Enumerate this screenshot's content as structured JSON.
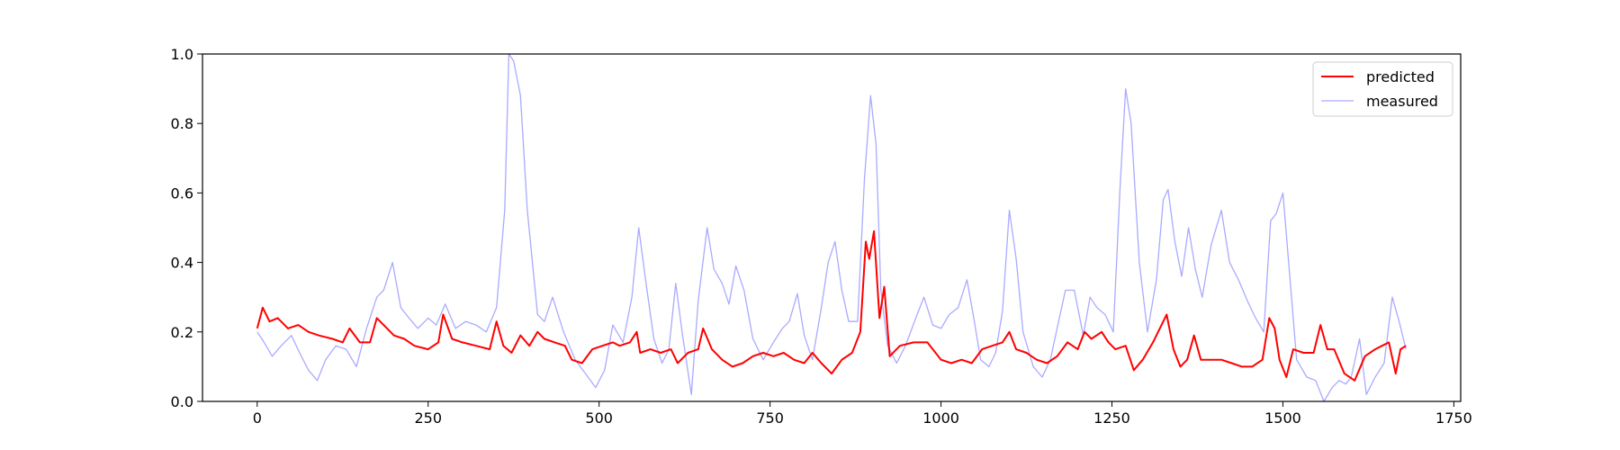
{
  "chart_data": {
    "type": "line",
    "title": "",
    "xlabel": "",
    "ylabel": "",
    "xlim": [
      -80,
      1760
    ],
    "ylim": [
      0,
      1.0
    ],
    "xticks": [
      0,
      250,
      500,
      750,
      1000,
      1250,
      1500,
      1750
    ],
    "yticks": [
      0.0,
      0.2,
      0.4,
      0.6,
      0.8,
      1.0
    ],
    "x_tick_labels": [
      "0",
      "250",
      "500",
      "750",
      "1000",
      "1250",
      "1500",
      "1750"
    ],
    "y_tick_labels": [
      "0.0",
      "0.2",
      "0.4",
      "0.6",
      "0.8",
      "1.0"
    ],
    "grid": false,
    "legend": {
      "position": "top-right"
    },
    "series": [
      {
        "name": "predicted",
        "color": "#ff0000",
        "points": [
          [
            0,
            0.21
          ],
          [
            8,
            0.27
          ],
          [
            18,
            0.23
          ],
          [
            30,
            0.24
          ],
          [
            45,
            0.21
          ],
          [
            60,
            0.22
          ],
          [
            75,
            0.2
          ],
          [
            90,
            0.19
          ],
          [
            110,
            0.18
          ],
          [
            125,
            0.17
          ],
          [
            135,
            0.21
          ],
          [
            150,
            0.17
          ],
          [
            165,
            0.17
          ],
          [
            175,
            0.24
          ],
          [
            190,
            0.21
          ],
          [
            200,
            0.19
          ],
          [
            215,
            0.18
          ],
          [
            230,
            0.16
          ],
          [
            250,
            0.15
          ],
          [
            265,
            0.17
          ],
          [
            272,
            0.25
          ],
          [
            285,
            0.18
          ],
          [
            300,
            0.17
          ],
          [
            320,
            0.16
          ],
          [
            340,
            0.15
          ],
          [
            350,
            0.23
          ],
          [
            360,
            0.16
          ],
          [
            372,
            0.14
          ],
          [
            385,
            0.19
          ],
          [
            398,
            0.16
          ],
          [
            410,
            0.2
          ],
          [
            420,
            0.18
          ],
          [
            435,
            0.17
          ],
          [
            450,
            0.16
          ],
          [
            460,
            0.12
          ],
          [
            475,
            0.11
          ],
          [
            490,
            0.15
          ],
          [
            505,
            0.16
          ],
          [
            520,
            0.17
          ],
          [
            530,
            0.16
          ],
          [
            545,
            0.17
          ],
          [
            555,
            0.2
          ],
          [
            560,
            0.14
          ],
          [
            575,
            0.15
          ],
          [
            590,
            0.14
          ],
          [
            605,
            0.15
          ],
          [
            615,
            0.11
          ],
          [
            630,
            0.14
          ],
          [
            645,
            0.15
          ],
          [
            652,
            0.21
          ],
          [
            665,
            0.15
          ],
          [
            680,
            0.12
          ],
          [
            695,
            0.1
          ],
          [
            710,
            0.11
          ],
          [
            725,
            0.13
          ],
          [
            740,
            0.14
          ],
          [
            755,
            0.13
          ],
          [
            770,
            0.14
          ],
          [
            785,
            0.12
          ],
          [
            800,
            0.11
          ],
          [
            812,
            0.14
          ],
          [
            825,
            0.11
          ],
          [
            840,
            0.08
          ],
          [
            855,
            0.12
          ],
          [
            870,
            0.14
          ],
          [
            882,
            0.2
          ],
          [
            890,
            0.46
          ],
          [
            895,
            0.41
          ],
          [
            902,
            0.49
          ],
          [
            910,
            0.24
          ],
          [
            917,
            0.33
          ],
          [
            925,
            0.13
          ],
          [
            940,
            0.16
          ],
          [
            960,
            0.17
          ],
          [
            980,
            0.17
          ],
          [
            1000,
            0.12
          ],
          [
            1015,
            0.11
          ],
          [
            1030,
            0.12
          ],
          [
            1045,
            0.11
          ],
          [
            1060,
            0.15
          ],
          [
            1075,
            0.16
          ],
          [
            1090,
            0.17
          ],
          [
            1100,
            0.2
          ],
          [
            1110,
            0.15
          ],
          [
            1125,
            0.14
          ],
          [
            1140,
            0.12
          ],
          [
            1155,
            0.11
          ],
          [
            1170,
            0.13
          ],
          [
            1185,
            0.17
          ],
          [
            1200,
            0.15
          ],
          [
            1210,
            0.2
          ],
          [
            1220,
            0.18
          ],
          [
            1235,
            0.2
          ],
          [
            1245,
            0.17
          ],
          [
            1255,
            0.15
          ],
          [
            1270,
            0.16
          ],
          [
            1282,
            0.09
          ],
          [
            1295,
            0.12
          ],
          [
            1310,
            0.17
          ],
          [
            1320,
            0.21
          ],
          [
            1330,
            0.25
          ],
          [
            1340,
            0.15
          ],
          [
            1350,
            0.1
          ],
          [
            1360,
            0.12
          ],
          [
            1370,
            0.19
          ],
          [
            1380,
            0.12
          ],
          [
            1395,
            0.12
          ],
          [
            1410,
            0.12
          ],
          [
            1425,
            0.11
          ],
          [
            1440,
            0.1
          ],
          [
            1455,
            0.1
          ],
          [
            1470,
            0.12
          ],
          [
            1480,
            0.24
          ],
          [
            1488,
            0.21
          ],
          [
            1495,
            0.12
          ],
          [
            1505,
            0.07
          ],
          [
            1515,
            0.15
          ],
          [
            1530,
            0.14
          ],
          [
            1545,
            0.14
          ],
          [
            1555,
            0.22
          ],
          [
            1565,
            0.15
          ],
          [
            1575,
            0.15
          ],
          [
            1590,
            0.08
          ],
          [
            1605,
            0.06
          ],
          [
            1620,
            0.13
          ],
          [
            1635,
            0.15
          ],
          [
            1645,
            0.16
          ],
          [
            1655,
            0.17
          ],
          [
            1665,
            0.08
          ],
          [
            1672,
            0.15
          ],
          [
            1680,
            0.16
          ]
        ]
      },
      {
        "name": "measured",
        "color": "#aaaaff",
        "points": [
          [
            0,
            0.2
          ],
          [
            10,
            0.17
          ],
          [
            22,
            0.13
          ],
          [
            35,
            0.16
          ],
          [
            50,
            0.19
          ],
          [
            62,
            0.14
          ],
          [
            75,
            0.09
          ],
          [
            88,
            0.06
          ],
          [
            100,
            0.12
          ],
          [
            115,
            0.16
          ],
          [
            130,
            0.15
          ],
          [
            145,
            0.1
          ],
          [
            160,
            0.21
          ],
          [
            175,
            0.3
          ],
          [
            185,
            0.32
          ],
          [
            198,
            0.4
          ],
          [
            210,
            0.27
          ],
          [
            222,
            0.24
          ],
          [
            235,
            0.21
          ],
          [
            250,
            0.24
          ],
          [
            262,
            0.22
          ],
          [
            275,
            0.28
          ],
          [
            290,
            0.21
          ],
          [
            305,
            0.23
          ],
          [
            320,
            0.22
          ],
          [
            335,
            0.2
          ],
          [
            350,
            0.27
          ],
          [
            362,
            0.55
          ],
          [
            368,
            1.0
          ],
          [
            375,
            0.98
          ],
          [
            385,
            0.88
          ],
          [
            395,
            0.55
          ],
          [
            410,
            0.25
          ],
          [
            420,
            0.23
          ],
          [
            432,
            0.3
          ],
          [
            448,
            0.2
          ],
          [
            465,
            0.12
          ],
          [
            480,
            0.08
          ],
          [
            495,
            0.04
          ],
          [
            508,
            0.09
          ],
          [
            520,
            0.22
          ],
          [
            535,
            0.17
          ],
          [
            548,
            0.3
          ],
          [
            558,
            0.5
          ],
          [
            568,
            0.35
          ],
          [
            580,
            0.18
          ],
          [
            592,
            0.11
          ],
          [
            602,
            0.15
          ],
          [
            612,
            0.34
          ],
          [
            622,
            0.19
          ],
          [
            635,
            0.02
          ],
          [
            645,
            0.29
          ],
          [
            658,
            0.5
          ],
          [
            668,
            0.38
          ],
          [
            680,
            0.34
          ],
          [
            690,
            0.28
          ],
          [
            700,
            0.39
          ],
          [
            712,
            0.32
          ],
          [
            725,
            0.18
          ],
          [
            740,
            0.12
          ],
          [
            755,
            0.17
          ],
          [
            768,
            0.21
          ],
          [
            778,
            0.23
          ],
          [
            790,
            0.31
          ],
          [
            800,
            0.19
          ],
          [
            812,
            0.12
          ],
          [
            825,
            0.27
          ],
          [
            835,
            0.4
          ],
          [
            845,
            0.46
          ],
          [
            855,
            0.32
          ],
          [
            865,
            0.23
          ],
          [
            878,
            0.23
          ],
          [
            888,
            0.64
          ],
          [
            897,
            0.88
          ],
          [
            905,
            0.74
          ],
          [
            912,
            0.32
          ],
          [
            922,
            0.16
          ],
          [
            935,
            0.11
          ],
          [
            948,
            0.16
          ],
          [
            965,
            0.25
          ],
          [
            975,
            0.3
          ],
          [
            988,
            0.22
          ],
          [
            1000,
            0.21
          ],
          [
            1012,
            0.25
          ],
          [
            1025,
            0.27
          ],
          [
            1038,
            0.35
          ],
          [
            1048,
            0.24
          ],
          [
            1058,
            0.12
          ],
          [
            1070,
            0.1
          ],
          [
            1080,
            0.14
          ],
          [
            1090,
            0.26
          ],
          [
            1100,
            0.55
          ],
          [
            1110,
            0.41
          ],
          [
            1120,
            0.2
          ],
          [
            1135,
            0.1
          ],
          [
            1148,
            0.07
          ],
          [
            1160,
            0.12
          ],
          [
            1172,
            0.23
          ],
          [
            1182,
            0.32
          ],
          [
            1195,
            0.32
          ],
          [
            1208,
            0.19
          ],
          [
            1218,
            0.3
          ],
          [
            1228,
            0.27
          ],
          [
            1240,
            0.25
          ],
          [
            1252,
            0.2
          ],
          [
            1262,
            0.62
          ],
          [
            1270,
            0.9
          ],
          [
            1278,
            0.8
          ],
          [
            1290,
            0.4
          ],
          [
            1302,
            0.2
          ],
          [
            1315,
            0.35
          ],
          [
            1325,
            0.58
          ],
          [
            1332,
            0.61
          ],
          [
            1342,
            0.46
          ],
          [
            1352,
            0.36
          ],
          [
            1362,
            0.5
          ],
          [
            1372,
            0.38
          ],
          [
            1382,
            0.3
          ],
          [
            1395,
            0.45
          ],
          [
            1410,
            0.55
          ],
          [
            1422,
            0.4
          ],
          [
            1435,
            0.35
          ],
          [
            1448,
            0.29
          ],
          [
            1460,
            0.24
          ],
          [
            1472,
            0.2
          ],
          [
            1482,
            0.52
          ],
          [
            1490,
            0.54
          ],
          [
            1500,
            0.6
          ],
          [
            1510,
            0.36
          ],
          [
            1520,
            0.12
          ],
          [
            1535,
            0.07
          ],
          [
            1548,
            0.06
          ],
          [
            1560,
            0.0
          ],
          [
            1572,
            0.04
          ],
          [
            1582,
            0.06
          ],
          [
            1592,
            0.05
          ],
          [
            1600,
            0.07
          ],
          [
            1612,
            0.18
          ],
          [
            1622,
            0.02
          ],
          [
            1635,
            0.07
          ],
          [
            1648,
            0.11
          ],
          [
            1660,
            0.3
          ],
          [
            1670,
            0.23
          ],
          [
            1680,
            0.15
          ]
        ]
      }
    ]
  }
}
